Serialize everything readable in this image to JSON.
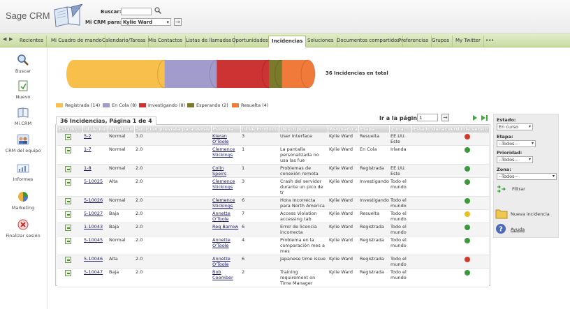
{
  "header": {
    "brand": "Sage CRM",
    "search_label": "Buscar:",
    "crm_for_label": "Mi CRM para:",
    "crm_for_value": "Kylie Ward"
  },
  "tabs": [
    "Recientes",
    "Mi Cuadro de mando",
    "Calendario/Tareas",
    "Mis Contactos",
    "Listas de llamadas",
    "Oportunidades",
    "Incidencias",
    "Soluciones",
    "Documentos compartidos",
    "Preferencias",
    "Grupos",
    "My Twitter",
    "•••"
  ],
  "active_tab": "Incidencias",
  "leftnav": [
    {
      "label": "Buscar",
      "icon": "magnifier-icon"
    },
    {
      "label": "Nuevo",
      "icon": "new-document-icon"
    },
    {
      "label": "Mi CRM",
      "icon": "my-crm-icon"
    },
    {
      "label": "CRM del equipo",
      "icon": "team-icon"
    },
    {
      "label": "Informes",
      "icon": "reports-icon"
    },
    {
      "label": "Marketing",
      "icon": "marketing-icon"
    },
    {
      "label": "Finalizar sesión",
      "icon": "logout-icon"
    }
  ],
  "chart_data": {
    "type": "bar",
    "stacked": true,
    "orientation": "horizontal",
    "total_label": "36 Incidencias en total",
    "categories": [
      "Registrada",
      "En Cola",
      "Investigando",
      "Esperando",
      "Resuelta"
    ],
    "values": [
      14,
      8,
      8,
      2,
      4
    ],
    "colors": [
      "#f8bf4a",
      "#a29ccc",
      "#cc3333",
      "#7a7a2a",
      "#f07a3a"
    ],
    "legend": [
      "Registrada (14)",
      "En Cola (8)",
      "Investigando (8)",
      "Esperando (2)",
      "Resuelta (4)"
    ]
  },
  "grid": {
    "title": "36 Incidencias, Página 1 de 4",
    "goto_label": "Ir a la página",
    "goto_value": "1",
    "columns": [
      "Estado",
      "Id de Ref",
      "Prioridad",
      "Solución prevista para versión",
      "Persona",
      "Id de Producto",
      "Descripción",
      "Asignado a",
      "Etapa",
      "Zona",
      "Estado del acuerdo de servicio"
    ],
    "rows": [
      {
        "ref": "5-2",
        "prio": "Normal",
        "ver": "3.0",
        "persona": "Kieran O'Toole",
        "prod": "3",
        "desc": "User Interface",
        "asig": "Kylie Ward",
        "etapa": "Resuelta",
        "zona": "EE.UU. Este",
        "sla": "red"
      },
      {
        "ref": "1-7",
        "prio": "Normal",
        "ver": "2.0",
        "persona": "Clemence Stickings",
        "prod": "1",
        "desc": "La pantalla personalizada no usa las fue",
        "asig": "Kylie Ward",
        "etapa": "En Cola",
        "zona": "Irlanda",
        "sla": "green"
      },
      {
        "ref": "1-8",
        "prio": "Normal",
        "ver": "2.0",
        "persona": "Colin Speirs",
        "prod": "1",
        "desc": "Problemas de conexión remota",
        "asig": "Kylie Ward",
        "etapa": "Registrada",
        "zona": "EE.UU. Este",
        "sla": "green"
      },
      {
        "ref": "5-10025",
        "prio": "Alta",
        "ver": "2.0",
        "persona": "Clemence Stickings",
        "prod": "3",
        "desc": "Crash del servidor durante un pico de tr",
        "asig": "Kylie Ward",
        "etapa": "Investigando",
        "zona": "Todo el mundo",
        "sla": "green"
      },
      {
        "ref": "5-10026",
        "prio": "Normal",
        "ver": "2.0",
        "persona": "Clemence Stickings",
        "prod": "6",
        "desc": "Hora Incorrecta para North America",
        "asig": "Kylie Ward",
        "etapa": "Investigando",
        "zona": "Todo el mundo",
        "sla": "green"
      },
      {
        "ref": "5-10027",
        "prio": "Baja",
        "ver": "2.0",
        "persona": "Annette O'Toole",
        "prod": "7",
        "desc": "Access Violation accessing tab",
        "asig": "Kylie Ward",
        "etapa": "Resuelta",
        "zona": "Todo el mundo",
        "sla": "yellow"
      },
      {
        "ref": "1-10043",
        "prio": "Baja",
        "ver": "2.0",
        "persona": "Reg Barrow",
        "prod": "6",
        "desc": "Error de licencia incorrecta",
        "asig": "Kylie Ward",
        "etapa": "Registrada",
        "zona": "Todo el mundo",
        "sla": "green"
      },
      {
        "ref": "5-10045",
        "prio": "Normal",
        "ver": "2.0",
        "persona": "Annette O'Toole",
        "prod": "4",
        "desc": "Problema en la comparación mes a mes",
        "asig": "Kylie Ward",
        "etapa": "Registrada",
        "zona": "Todo el mundo",
        "sla": "green"
      },
      {
        "ref": "5-10046",
        "prio": "Alta",
        "ver": "2.0",
        "persona": "Annette O'Toole",
        "prod": "6",
        "desc": "Japanese time issue",
        "asig": "Kylie Ward",
        "etapa": "Registrada",
        "zona": "Todo el mundo",
        "sla": "red"
      },
      {
        "ref": "5-10047",
        "prio": "Baja",
        "ver": "2.0",
        "persona": "Bob Coomber",
        "prod": "2",
        "desc": "Training requirement on Time Manager",
        "asig": "Kylie Ward",
        "etapa": "Registrada",
        "zona": "Todo el mundo",
        "sla": "green"
      }
    ]
  },
  "filters": {
    "estado_label": "Estado:",
    "estado_value": "En curso",
    "etapa_label": "Etapa:",
    "etapa_value": "--Todos--",
    "prioridad_label": "Prioridad:",
    "prioridad_value": "--Todos--",
    "zona_label": "Zona:",
    "zona_value": "--Todos--",
    "filtrar": "Filtrar",
    "nueva": "Nueva incidencia",
    "ayuda": "Ayuda"
  },
  "colors": {
    "sla_green": "#3a9a3a",
    "sla_red": "#d23a2a",
    "sla_yellow": "#e8c020"
  }
}
